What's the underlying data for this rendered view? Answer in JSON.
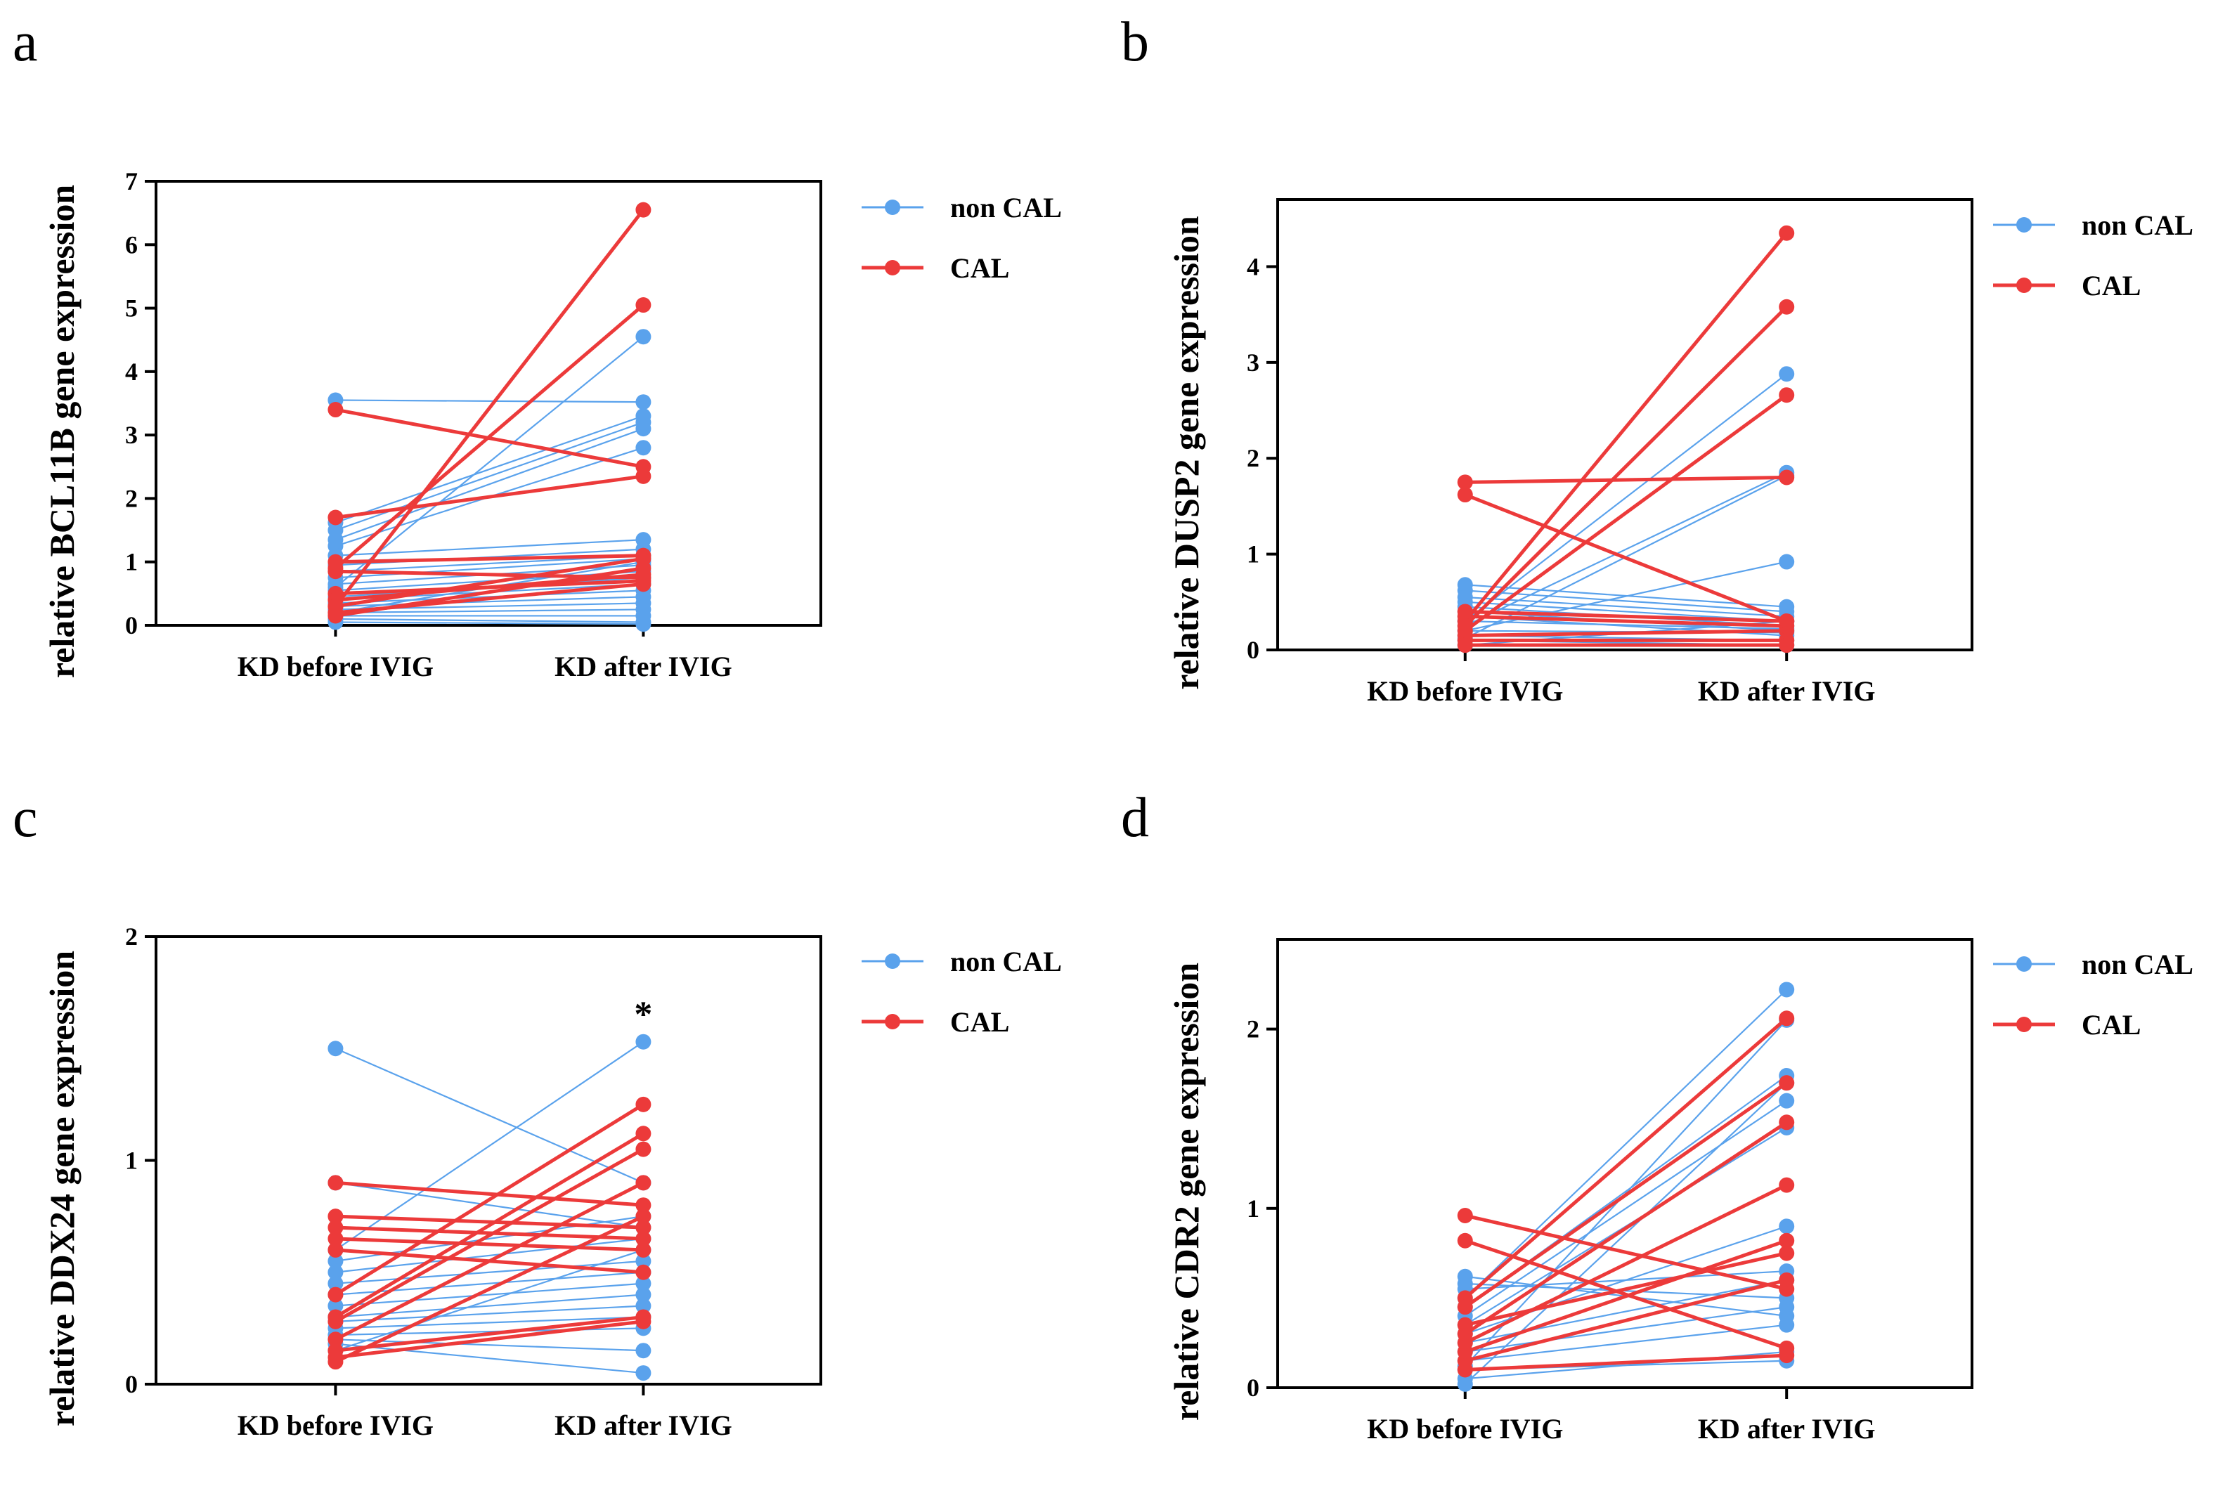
{
  "colors": {
    "non_cal": "#5aa2ec",
    "cal": "#ec3a3a",
    "axis": "#000000"
  },
  "chart_data": [
    {
      "panel": "a",
      "type": "line",
      "title": "",
      "xlabel": "",
      "ylabel": "relative BCL11B gene expression",
      "categories": [
        "KD before IVIG",
        "KD after IVIG"
      ],
      "ylim": [
        0,
        7
      ],
      "yticks": [
        "0",
        "1",
        "2",
        "3",
        "4",
        "5",
        "6",
        "7"
      ],
      "legend": {
        "position": "right",
        "entries": [
          "non CAL",
          "CAL"
        ]
      },
      "annotation": "",
      "series": [
        {
          "name": "non CAL",
          "pairs": [
            [
              3.55,
              3.52
            ],
            [
              1.62,
              3.3
            ],
            [
              1.5,
              3.2
            ],
            [
              1.35,
              3.1
            ],
            [
              1.25,
              2.8
            ],
            [
              1.1,
              1.35
            ],
            [
              0.95,
              1.2
            ],
            [
              0.85,
              1.1
            ],
            [
              0.75,
              1.05
            ],
            [
              0.65,
              0.95
            ],
            [
              0.55,
              0.85
            ],
            [
              0.45,
              0.75
            ],
            [
              0.4,
              0.65
            ],
            [
              0.35,
              0.55
            ],
            [
              0.3,
              0.45
            ],
            [
              0.25,
              0.35
            ],
            [
              0.2,
              0.25
            ],
            [
              0.15,
              0.15
            ],
            [
              0.1,
              0.05
            ],
            [
              0.05,
              0.02
            ],
            [
              0.6,
              4.55
            ],
            [
              0.2,
              1.0
            ]
          ]
        },
        {
          "name": "CAL",
          "pairs": [
            [
              3.4,
              2.5
            ],
            [
              1.7,
              2.35
            ],
            [
              0.9,
              5.05
            ],
            [
              0.3,
              6.55
            ],
            [
              1.0,
              1.1
            ],
            [
              0.85,
              0.75
            ],
            [
              0.5,
              0.7
            ],
            [
              0.4,
              0.8
            ],
            [
              0.3,
              1.05
            ],
            [
              0.2,
              0.65
            ],
            [
              0.15,
              0.9
            ]
          ]
        }
      ]
    },
    {
      "panel": "b",
      "type": "line",
      "title": "",
      "xlabel": "",
      "ylabel": "relative DUSP2 gene expression",
      "categories": [
        "KD before IVIG",
        "KD after IVIG"
      ],
      "ylim": [
        0,
        4.7
      ],
      "yticks": [
        "0",
        "1",
        "2",
        "3",
        "4"
      ],
      "legend": {
        "position": "right",
        "entries": [
          "non CAL",
          "CAL"
        ]
      },
      "annotation": "",
      "series": [
        {
          "name": "non CAL",
          "pairs": [
            [
              0.68,
              0.45
            ],
            [
              0.62,
              0.4
            ],
            [
              0.55,
              0.35
            ],
            [
              0.5,
              0.3
            ],
            [
              0.45,
              0.25
            ],
            [
              0.4,
              0.2
            ],
            [
              0.35,
              0.15
            ],
            [
              0.3,
              2.88
            ],
            [
              0.25,
              1.85
            ],
            [
              0.2,
              0.92
            ],
            [
              0.15,
              0.1
            ],
            [
              0.1,
              0.05
            ],
            [
              0.05,
              0.3
            ],
            [
              0.3,
              0.22
            ],
            [
              0.2,
              0.18
            ],
            [
              0.12,
              1.82
            ]
          ]
        },
        {
          "name": "CAL",
          "pairs": [
            [
              1.75,
              1.8
            ],
            [
              1.62,
              0.3
            ],
            [
              0.3,
              4.35
            ],
            [
              0.25,
              3.58
            ],
            [
              0.2,
              2.66
            ],
            [
              0.15,
              0.2
            ],
            [
              0.1,
              0.1
            ],
            [
              0.05,
              0.05
            ],
            [
              0.35,
              0.25
            ],
            [
              0.4,
              0.3
            ]
          ]
        }
      ]
    },
    {
      "panel": "c",
      "type": "line",
      "title": "",
      "xlabel": "",
      "ylabel": "relative DDX24 gene expression",
      "categories": [
        "KD before IVIG",
        "KD after IVIG"
      ],
      "ylim": [
        0,
        2
      ],
      "yticks": [
        "0",
        "1",
        "2"
      ],
      "legend": {
        "position": "right",
        "entries": [
          "non CAL",
          "CAL"
        ]
      },
      "annotation": "*",
      "series": [
        {
          "name": "non CAL",
          "pairs": [
            [
              1.5,
              0.9
            ],
            [
              0.9,
              0.7
            ],
            [
              0.6,
              1.53
            ],
            [
              0.55,
              0.75
            ],
            [
              0.5,
              0.65
            ],
            [
              0.45,
              0.55
            ],
            [
              0.4,
              0.5
            ],
            [
              0.35,
              0.45
            ],
            [
              0.3,
              0.4
            ],
            [
              0.28,
              0.35
            ],
            [
              0.25,
              0.3
            ],
            [
              0.22,
              0.25
            ],
            [
              0.2,
              0.15
            ],
            [
              0.18,
              0.05
            ],
            [
              0.15,
              0.6
            ]
          ]
        },
        {
          "name": "CAL",
          "pairs": [
            [
              0.9,
              0.8
            ],
            [
              0.75,
              0.7
            ],
            [
              0.7,
              0.65
            ],
            [
              0.65,
              0.6
            ],
            [
              0.6,
              0.5
            ],
            [
              0.4,
              1.25
            ],
            [
              0.3,
              1.12
            ],
            [
              0.28,
              1.05
            ],
            [
              0.2,
              0.9
            ],
            [
              0.15,
              0.3
            ],
            [
              0.12,
              0.28
            ],
            [
              0.1,
              0.75
            ]
          ]
        }
      ]
    },
    {
      "panel": "d",
      "type": "line",
      "title": "",
      "xlabel": "",
      "ylabel": "relative CDR2 gene expression",
      "categories": [
        "KD before IVIG",
        "KD after IVIG"
      ],
      "ylim": [
        0,
        2.5
      ],
      "yticks": [
        "0",
        "1",
        "2"
      ],
      "legend": {
        "position": "right",
        "entries": [
          "non CAL",
          "CAL"
        ]
      },
      "annotation": "",
      "series": [
        {
          "name": "non CAL",
          "pairs": [
            [
              0.62,
              0.4
            ],
            [
              0.58,
              0.5
            ],
            [
              0.55,
              0.65
            ],
            [
              0.5,
              2.22
            ],
            [
              0.45,
              1.74
            ],
            [
              0.4,
              1.6
            ],
            [
              0.35,
              1.45
            ],
            [
              0.3,
              0.9
            ],
            [
              0.25,
              0.6
            ],
            [
              0.2,
              0.45
            ],
            [
              0.15,
              0.35
            ],
            [
              0.1,
              0.15
            ],
            [
              0.05,
              0.2
            ],
            [
              0.02,
              1.7
            ],
            [
              0.12,
              2.05
            ]
          ]
        },
        {
          "name": "CAL",
          "pairs": [
            [
              0.96,
              0.55
            ],
            [
              0.82,
              0.22
            ],
            [
              0.5,
              2.06
            ],
            [
              0.45,
              1.7
            ],
            [
              0.3,
              1.48
            ],
            [
              0.25,
              1.13
            ],
            [
              0.2,
              0.82
            ],
            [
              0.15,
              0.6
            ],
            [
              0.1,
              0.18
            ],
            [
              0.35,
              0.75
            ]
          ]
        }
      ]
    }
  ]
}
